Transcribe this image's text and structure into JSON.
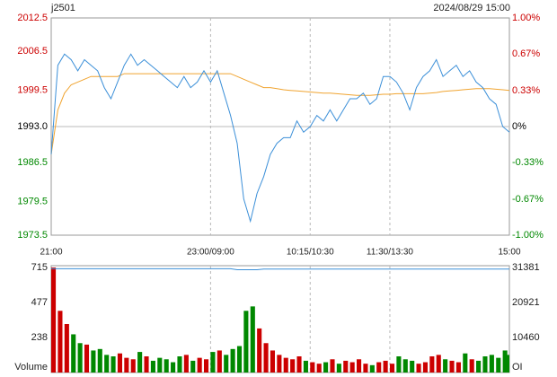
{
  "chart_data": [
    {
      "type": "line",
      "symbol": "j2501",
      "timestamp": "2024/08/29 15:00",
      "x": [
        0,
        5,
        10,
        15,
        20,
        25,
        30,
        35,
        40,
        45,
        50,
        55,
        60,
        65,
        70,
        75,
        80,
        85,
        90,
        95,
        100,
        105,
        110,
        115,
        120,
        125,
        130,
        135,
        140,
        145,
        150,
        155,
        160,
        165,
        170,
        175,
        180,
        185,
        190,
        195,
        200,
        205,
        210,
        215,
        220,
        225,
        230,
        235,
        240,
        245,
        250,
        255,
        260,
        265,
        270,
        275,
        280,
        285,
        290,
        295,
        300,
        305,
        310,
        315,
        320,
        325,
        330,
        335,
        340,
        345
      ],
      "xlim": [
        0,
        345
      ],
      "xticks": [
        {
          "value": 0,
          "label": "21:00"
        },
        {
          "value": 120,
          "label": "23:00/09:00"
        },
        {
          "value": 195,
          "label": "10:15/10:30"
        },
        {
          "value": 255,
          "label": "11:30/13:30"
        },
        {
          "value": 345,
          "label": "15:00"
        }
      ],
      "ylim": [
        1973.5,
        2012.5
      ],
      "yticks": [
        2012.5,
        2006.5,
        1999.5,
        {
          "value": 1993,
          "label": "1993.0"
        },
        1986.5,
        1979.5,
        1973.5
      ],
      "y2lim": [
        -1,
        1
      ],
      "y2ticks": [
        {
          "value": 1,
          "label": "1.00%"
        },
        {
          "value": 0.67,
          "label": "0.67%"
        },
        {
          "value": 0.33,
          "label": "0.33%"
        },
        {
          "value": 0,
          "label": "0%"
        },
        {
          "value": -0.33,
          "label": "-0.33%"
        },
        {
          "value": -0.67,
          "label": "-0.67%"
        },
        {
          "value": -1,
          "label": "-1.00%"
        }
      ],
      "up_color": "#cc0000",
      "down_color": "#008800",
      "series": [
        {
          "color": "#3b8fd8",
          "values": [
            1988,
            2004,
            2006,
            2005,
            2003,
            2005,
            2004,
            2003,
            2000,
            1998,
            2001,
            2004,
            2006,
            2004,
            2005,
            2004,
            2003,
            2002,
            2001,
            2000,
            2002,
            2000,
            2001,
            2003,
            2001,
            2003,
            1999,
            1995,
            1990,
            1980,
            1976,
            1981,
            1984,
            1988,
            1990,
            1991,
            1991,
            1994,
            1992,
            1993,
            1995,
            1994,
            1996,
            1994,
            1996,
            1998,
            1998,
            1999,
            1997,
            1998,
            2002,
            2002,
            2001,
            1999,
            1996,
            2000,
            2002,
            2003,
            2005,
            2002,
            2003,
            2004,
            2002,
            2003,
            2001,
            2000,
            1998,
            1997,
            1993,
            1992
          ]
        },
        {
          "color": "#f0a430",
          "values": [
            1988,
            1996,
            1999,
            2000.5,
            2001,
            2001.5,
            2002,
            2002,
            2002,
            2002,
            2002,
            2002.5,
            2002.5,
            2002.5,
            2002.5,
            2002.5,
            2002.5,
            2002.5,
            2002.5,
            2002.5,
            2002.5,
            2002.5,
            2002.5,
            2002.5,
            2002.5,
            2002.5,
            2002.5,
            2002.5,
            2002,
            2001.5,
            2001,
            2000.5,
            2000,
            2000,
            1999.8,
            1999.6,
            1999.5,
            1999.4,
            1999.3,
            1999.2,
            1999.1,
            1999,
            1999,
            1998.9,
            1998.8,
            1998.7,
            1998.6,
            1998.6,
            1998.6,
            1998.7,
            1998.8,
            1998.8,
            1998.9,
            1998.9,
            1998.9,
            1998.9,
            1998.9,
            1999,
            1999.1,
            1999.3,
            1999.4,
            1999.5,
            1999.6,
            1999.7,
            1999.8,
            1999.8,
            1999.8,
            1999.7,
            1999.6,
            1999.5
          ]
        }
      ]
    },
    {
      "type": "bar",
      "ylabel": "Volume",
      "y2label": "OI",
      "x": [
        0,
        5,
        10,
        15,
        20,
        25,
        30,
        35,
        40,
        45,
        50,
        55,
        60,
        65,
        70,
        75,
        80,
        85,
        90,
        95,
        100,
        105,
        110,
        115,
        120,
        125,
        130,
        135,
        140,
        145,
        150,
        155,
        160,
        165,
        170,
        175,
        180,
        185,
        190,
        195,
        200,
        205,
        210,
        215,
        220,
        225,
        230,
        235,
        240,
        245,
        250,
        255,
        260,
        265,
        270,
        275,
        280,
        285,
        290,
        295,
        300,
        305,
        310,
        315,
        320,
        325,
        330,
        335,
        340,
        345
      ],
      "xlim": [
        0,
        345
      ],
      "ylim": [
        0,
        715
      ],
      "yticks": [
        238,
        477,
        715
      ],
      "y2lim": [
        0,
        31381
      ],
      "y2ticks": [
        10460,
        20921,
        31381
      ],
      "series": [
        {
          "values": [
            715,
            420,
            330,
            260,
            200,
            190,
            150,
            160,
            120,
            110,
            130,
            100,
            90,
            140,
            110,
            80,
            100,
            90,
            70,
            110,
            120,
            80,
            100,
            90,
            140,
            150,
            120,
            160,
            180,
            420,
            450,
            300,
            200,
            150,
            120,
            100,
            90,
            110,
            80,
            70,
            60,
            70,
            90,
            60,
            80,
            70,
            90,
            60,
            50,
            70,
            80,
            60,
            110,
            90,
            80,
            60,
            70,
            110,
            120,
            90,
            80,
            70,
            130,
            90,
            80,
            110,
            120,
            100,
            150,
            120
          ]
        },
        {
          "color": "#3b8fd8",
          "axis": "y2",
          "values": [
            31000,
            31000,
            31000,
            31000,
            31000,
            31000,
            31000,
            31000,
            31000,
            31000,
            31000,
            31000,
            31000,
            31000,
            31000,
            31000,
            31000,
            31000,
            31000,
            31000,
            31000,
            31000,
            31000,
            31000,
            31000,
            31000,
            31000,
            31000,
            30700,
            30700,
            30700,
            30700,
            30900,
            30900,
            30900,
            30900,
            30900,
            30900,
            30900,
            30900,
            30900,
            30900,
            30900,
            30900,
            30900,
            30900,
            30900,
            30900,
            30900,
            30900,
            30900,
            30900,
            30900,
            30900,
            30900,
            30900,
            30900,
            30900,
            30900,
            30900,
            30900,
            30900,
            30900,
            30900,
            30900,
            30900,
            30900,
            30900,
            30900,
            30900
          ]
        }
      ]
    }
  ]
}
